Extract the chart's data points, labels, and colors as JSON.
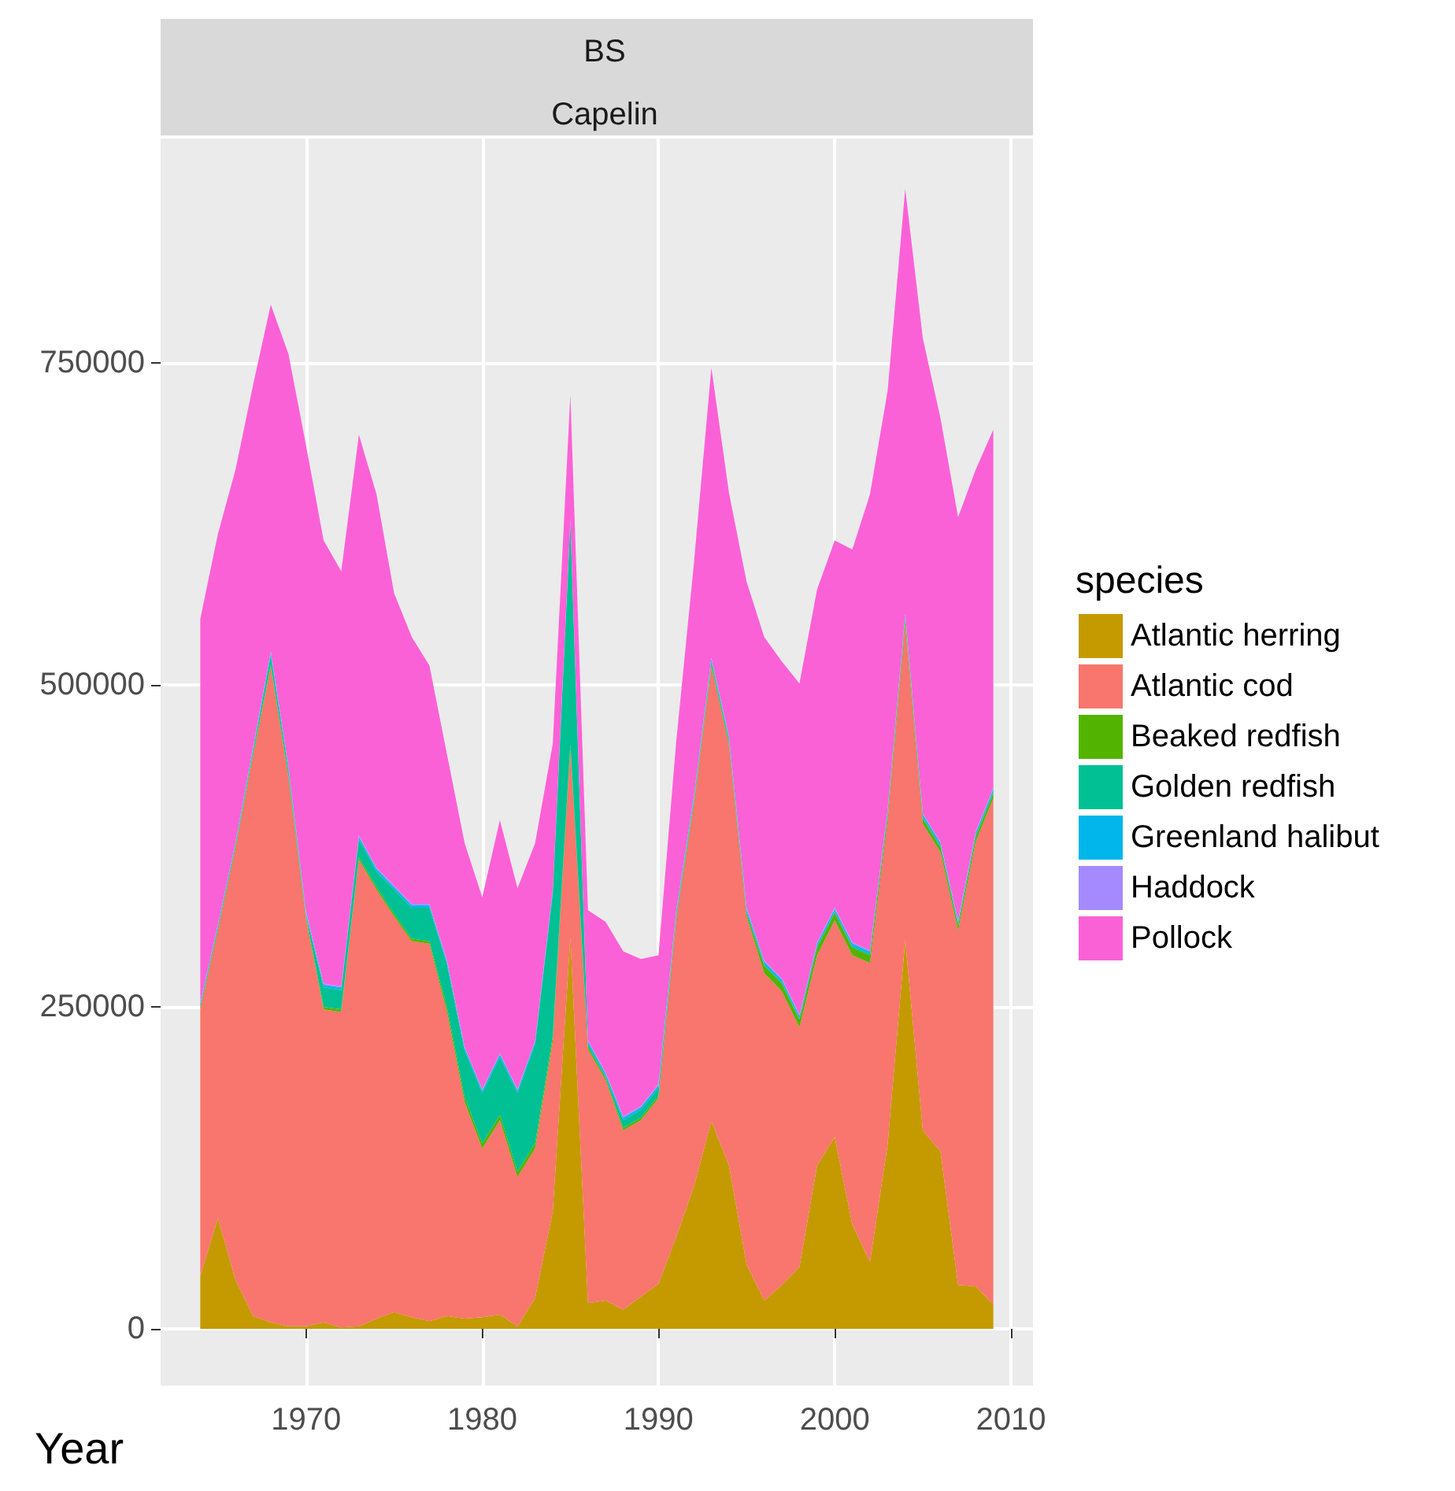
{
  "chart_data": {
    "type": "area",
    "title": "BS",
    "subtitle": "Capelin",
    "xlabel": "Year",
    "legend_title": "species",
    "stacked": true,
    "grid": true,
    "legend": "right",
    "x": [
      1964,
      1965,
      1966,
      1967,
      1968,
      1969,
      1970,
      1971,
      1972,
      1973,
      1974,
      1975,
      1976,
      1977,
      1978,
      1979,
      1980,
      1981,
      1982,
      1983,
      1984,
      1985,
      1986,
      1987,
      1988,
      1989,
      1990,
      1991,
      1992,
      1993,
      1994,
      1995,
      1996,
      1997,
      1998,
      1999,
      2000,
      2001,
      2002,
      2003,
      2004,
      2005,
      2006,
      2007,
      2008,
      2009
    ],
    "xlim": [
      1961.75,
      2011.25
    ],
    "xticks": [
      1970,
      1980,
      1990,
      2000,
      2010
    ],
    "ylim": [
      -44000,
      924000
    ],
    "yticks": [
      0,
      250000,
      500000,
      750000
    ],
    "series": [
      {
        "name": "Atlantic herring",
        "color": "#c49a00",
        "values": [
          41000,
          86000,
          38000,
          10000,
          5000,
          2000,
          2000,
          5000,
          1000,
          2000,
          8000,
          13000,
          9000,
          6000,
          10000,
          8000,
          9000,
          11000,
          2000,
          24000,
          91000,
          304000,
          20000,
          22000,
          15000,
          25000,
          35000,
          71000,
          110000,
          161000,
          127000,
          50000,
          22000,
          34000,
          48000,
          127000,
          149000,
          81000,
          52000,
          143000,
          302000,
          154000,
          138000,
          34000,
          33000,
          19000
        ]
      },
      {
        "name": "Atlantic cod",
        "color": "#f8766d",
        "values": [
          207000,
          223000,
          335000,
          435000,
          509000,
          426000,
          316000,
          243000,
          245000,
          362000,
          333000,
          307000,
          292000,
          293000,
          236000,
          168000,
          131000,
          151000,
          116000,
          116000,
          132000,
          146000,
          197000,
          171000,
          139000,
          137000,
          144000,
          246000,
          296000,
          353000,
          326000,
          270000,
          254000,
          228000,
          186000,
          163000,
          168000,
          209000,
          232000,
          252000,
          245000,
          238000,
          232000,
          275000,
          345000,
          393000
        ]
      },
      {
        "name": "Beaked redfish",
        "color": "#53b400",
        "values": [
          2000,
          2000,
          2000,
          2000,
          2000,
          2000,
          2000,
          2000,
          2000,
          2000,
          2000,
          2000,
          2000,
          2000,
          4000,
          4000,
          4000,
          4000,
          4000,
          4000,
          4000,
          4000,
          2000,
          2000,
          2000,
          2000,
          2000,
          2000,
          2000,
          2000,
          2000,
          2000,
          6000,
          6000,
          6000,
          6000,
          6000,
          6000,
          6000,
          4000,
          4000,
          4000,
          4000,
          4000,
          4000,
          4000
        ]
      },
      {
        "name": "Golden redfish",
        "color": "#00c094",
        "values": [
          0,
          0,
          0,
          2000,
          7000,
          4000,
          1000,
          15000,
          15000,
          14000,
          12000,
          19000,
          24000,
          26000,
          33000,
          36000,
          39000,
          45000,
          61000,
          77000,
          111000,
          171000,
          2000,
          1000,
          6000,
          6000,
          6000,
          2000,
          2000,
          2000,
          2000,
          2000,
          1000,
          1000,
          1000,
          1000,
          1000,
          1000,
          1000,
          1000,
          1000,
          1000,
          1000,
          1000,
          1000,
          1000
        ]
      },
      {
        "name": "Greenland halibut",
        "color": "#00b6eb",
        "values": [
          2000,
          2000,
          2000,
          2000,
          2000,
          2000,
          2000,
          2000,
          2000,
          2000,
          2000,
          2000,
          2000,
          2000,
          2000,
          2000,
          2000,
          2000,
          2000,
          2000,
          2000,
          2000,
          2000,
          2000,
          2000,
          2000,
          2000,
          2000,
          2000,
          2000,
          2000,
          2000,
          2000,
          2000,
          2000,
          2000,
          2000,
          2000,
          2000,
          2000,
          2000,
          2000,
          2000,
          2000,
          2000,
          2000
        ]
      },
      {
        "name": "Haddock",
        "color": "#a58aff",
        "values": [
          1000,
          1000,
          1000,
          1000,
          1000,
          1000,
          1000,
          1000,
          1000,
          1000,
          1000,
          1000,
          1000,
          1000,
          1000,
          1000,
          1000,
          1000,
          1000,
          1000,
          1000,
          1000,
          1000,
          1000,
          1000,
          1000,
          1000,
          1000,
          1000,
          1000,
          1000,
          1000,
          1000,
          1000,
          1000,
          1000,
          1000,
          1000,
          1000,
          1000,
          1000,
          1000,
          1000,
          1000,
          1000,
          1000
        ]
      },
      {
        "name": "Pollock",
        "color": "#fb61d7",
        "values": [
          298000,
          303000,
          289000,
          281000,
          269000,
          320000,
          362000,
          344000,
          322000,
          311000,
          290000,
          227000,
          207000,
          185000,
          160000,
          158000,
          149000,
          181000,
          156000,
          153000,
          113000,
          97000,
          101000,
          117000,
          128000,
          114000,
          100000,
          131000,
          180000,
          225000,
          189000,
          253000,
          251000,
          246000,
          257000,
          274000,
          285000,
          305000,
          354000,
          325000,
          330000,
          369000,
          329000,
          313000,
          281000,
          278000
        ]
      }
    ]
  }
}
